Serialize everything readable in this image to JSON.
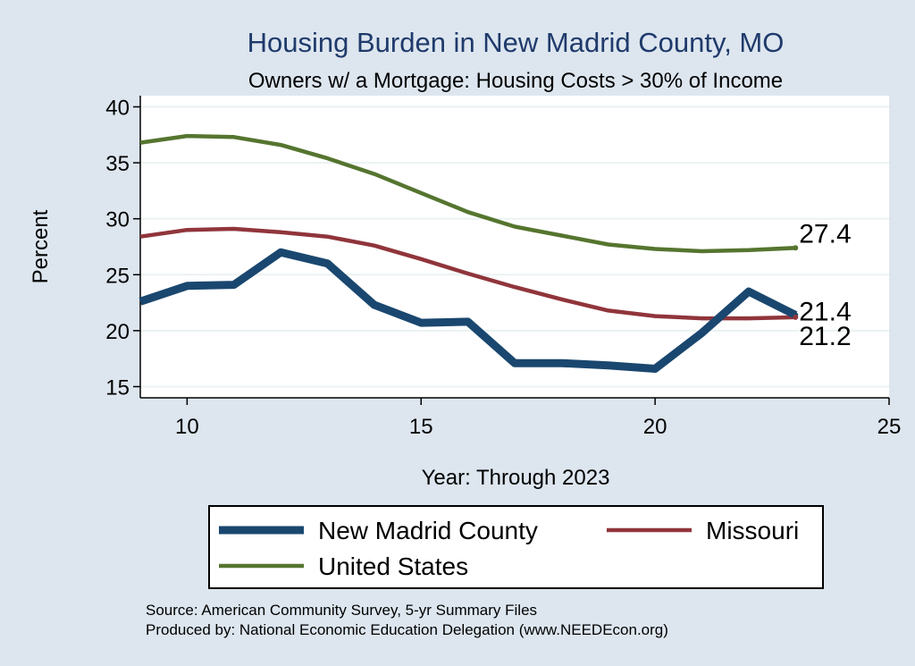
{
  "chart_data": {
    "type": "line",
    "title": "Housing Burden in New Madrid County, MO",
    "subtitle": "Owners w/ a Mortgage: Housing Costs > 30% of Income",
    "xlabel": "Year: Through 2023",
    "ylabel": "Percent",
    "xlim": [
      9,
      25
    ],
    "ylim": [
      14,
      41
    ],
    "xticks": [
      10,
      15,
      20,
      25
    ],
    "yticks": [
      15,
      20,
      25,
      30,
      35,
      40
    ],
    "grid": true,
    "x": [
      9,
      10,
      11,
      12,
      13,
      14,
      15,
      16,
      17,
      18,
      19,
      20,
      21,
      22,
      23
    ],
    "series": [
      {
        "name": "New Madrid County",
        "color": "#1a476f",
        "values": [
          22.6,
          24.0,
          24.1,
          27.0,
          26.0,
          22.3,
          20.7,
          20.8,
          17.1,
          17.1,
          16.9,
          16.6,
          19.8,
          23.5,
          21.4
        ],
        "end_label": "21.4"
      },
      {
        "name": "Missouri",
        "color": "#90353b",
        "values": [
          28.4,
          29.0,
          29.1,
          28.8,
          28.4,
          27.6,
          26.4,
          25.1,
          23.9,
          22.8,
          21.8,
          21.3,
          21.1,
          21.1,
          21.2
        ],
        "end_label": "21.2"
      },
      {
        "name": "United States",
        "color": "#55752f",
        "values": [
          36.8,
          37.4,
          37.3,
          36.6,
          35.4,
          34.0,
          32.3,
          30.6,
          29.3,
          28.5,
          27.7,
          27.3,
          27.1,
          27.2,
          27.4
        ],
        "end_label": "27.4"
      }
    ],
    "legend_position": "bottom"
  },
  "source_line1": "Source: American Community Survey, 5-yr Summary Files",
  "source_line2": "Produced by: National Economic Education Delegation (www.NEEDEcon.org)"
}
